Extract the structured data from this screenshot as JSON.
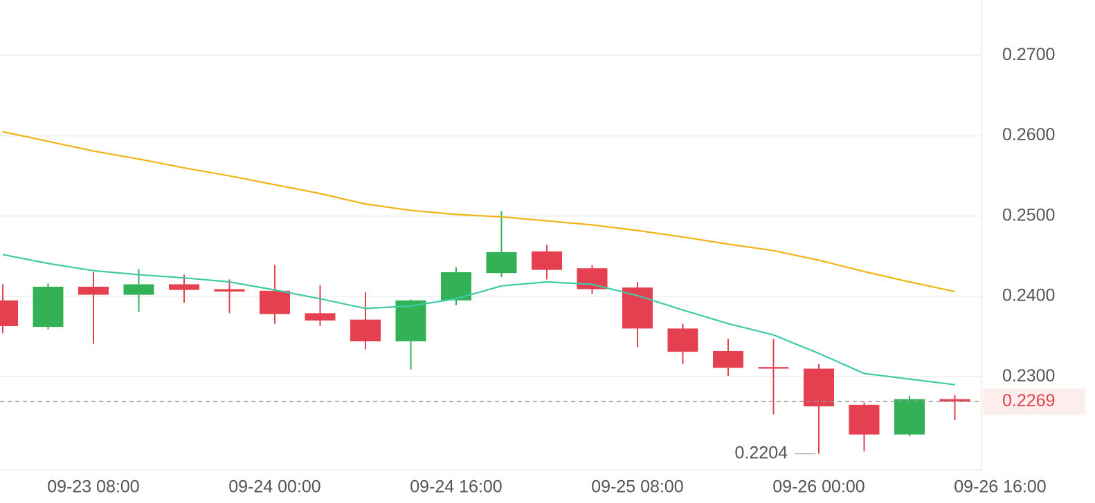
{
  "chart_data": {
    "type": "candlestick",
    "categories": [
      null,
      null,
      "09-23 08:00",
      null,
      null,
      null,
      "09-24 00:00",
      null,
      null,
      null,
      "09-24 16:00",
      null,
      null,
      null,
      "09-25 08:00",
      null,
      null,
      null,
      "09-26 00:00",
      null,
      null,
      null,
      "09-26 16:00"
    ],
    "open": [
      0.2395,
      0.2362,
      0.2412,
      0.2402,
      0.2415,
      0.2409,
      0.2407,
      0.2379,
      0.2371,
      0.2344,
      0.2395,
      0.2429,
      0.2456,
      0.2435,
      0.2411,
      0.236,
      0.2332,
      0.2312,
      0.231,
      0.2265,
      0.2228,
      0.2272,
      null
    ],
    "high": [
      0.2415,
      0.2416,
      0.243,
      0.2434,
      0.2427,
      0.2421,
      0.2439,
      0.2414,
      0.2405,
      0.2396,
      0.2436,
      0.2506,
      0.2464,
      0.2439,
      0.2418,
      0.2366,
      0.2347,
      0.2347,
      0.2316,
      0.2268,
      0.2276,
      0.2277,
      null
    ],
    "low": [
      0.2354,
      0.2359,
      0.2341,
      0.2381,
      0.2392,
      0.2379,
      0.2366,
      0.2363,
      0.2334,
      0.2309,
      0.2389,
      0.2424,
      0.2421,
      0.2403,
      0.2337,
      0.2316,
      0.2301,
      0.2253,
      0.2204,
      0.2207,
      0.2226,
      0.2246,
      null
    ],
    "close": [
      0.2363,
      0.2412,
      0.2402,
      0.2415,
      0.2408,
      0.2406,
      0.2378,
      0.237,
      0.2344,
      0.2395,
      0.243,
      0.2455,
      0.2433,
      0.2409,
      0.236,
      0.2331,
      0.2311,
      0.231,
      0.2263,
      0.2228,
      0.2272,
      0.2269,
      null
    ],
    "up_color": "#32b157",
    "down_color": "#e5404f",
    "lines": [
      {
        "color": "#3fcaa8",
        "values": [
          0.2452,
          0.2441,
          0.2432,
          0.2427,
          0.2423,
          0.2418,
          0.2408,
          0.2397,
          0.2385,
          0.2388,
          0.2397,
          0.2413,
          0.2418,
          0.2415,
          0.2401,
          0.2383,
          0.2366,
          0.2352,
          0.2329,
          0.2304,
          0.2297,
          0.229,
          null
        ]
      },
      {
        "color": "#f2b315",
        "values": [
          0.2605,
          0.2593,
          0.2581,
          0.2571,
          0.256,
          0.255,
          0.2539,
          0.2528,
          0.2515,
          0.2507,
          0.2502,
          0.2499,
          0.2494,
          0.2489,
          0.2482,
          0.2474,
          0.2465,
          0.2457,
          0.2445,
          0.2431,
          0.2418,
          0.2406,
          null
        ]
      }
    ],
    "ylim": [
      0.2184,
      0.2769
    ],
    "yticks": [
      {
        "value": 0.23,
        "label": "0.2300"
      },
      {
        "value": 0.24,
        "label": "0.2400"
      },
      {
        "value": 0.25,
        "label": "0.2500"
      },
      {
        "value": 0.26,
        "label": "0.2600"
      },
      {
        "value": 0.27,
        "label": "0.2700"
      }
    ],
    "grid": true,
    "last_price": {
      "value": 0.2269,
      "label": "0.2269"
    },
    "low_marker": {
      "value": 0.2204,
      "label": "0.2204"
    }
  }
}
